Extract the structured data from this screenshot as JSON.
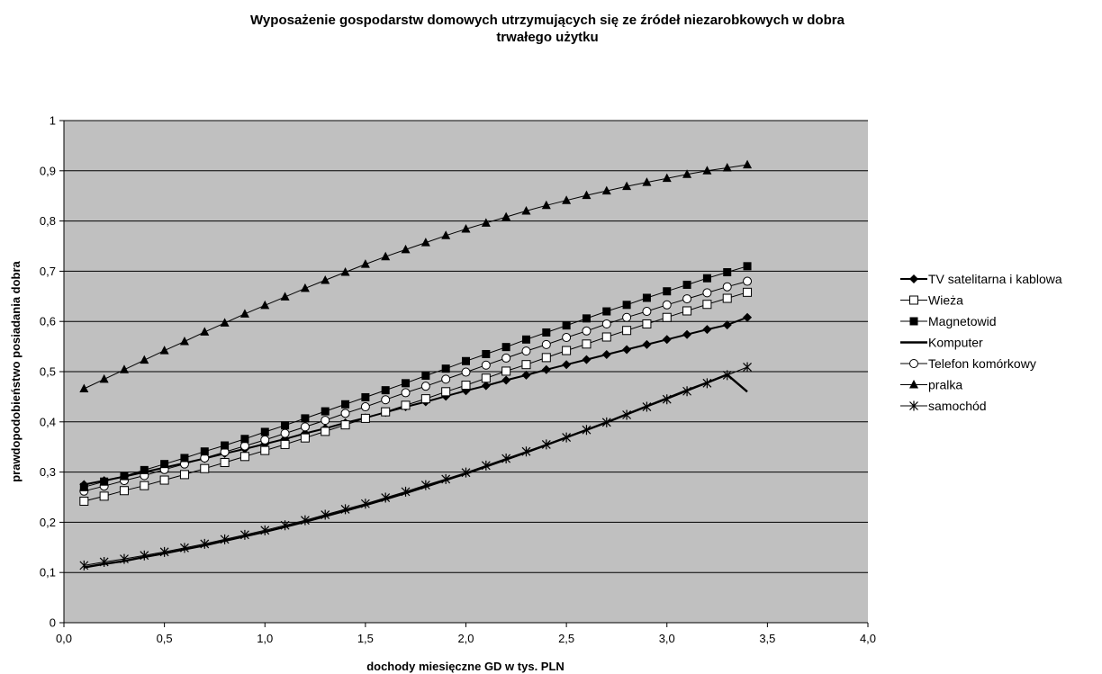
{
  "chart_data": {
    "type": "line",
    "title_line1": "Wyposażenie gospodarstw domowych utrzymujących się ze źródeł niezarobkowych w dobra",
    "title_line2": "trwałego użytku",
    "xlabel": "dochody miesięczne GD w tys. PLN",
    "ylabel": "prawdopodobieństwo posiadania dobra",
    "xlim": [
      0,
      4
    ],
    "ylim": [
      0,
      1
    ],
    "x_ticks": [
      "0,0",
      "0,5",
      "1,0",
      "1,5",
      "2,0",
      "2,5",
      "3,0",
      "3,5",
      "4,0"
    ],
    "y_ticks": [
      "0",
      "0,1",
      "0,2",
      "0,3",
      "0,4",
      "0,5",
      "0,6",
      "0,7",
      "0,8",
      "0,9",
      "1"
    ],
    "grid": "horizontal",
    "legend_position": "right",
    "plot_background": "#c0c0c0",
    "x": [
      0.1,
      0.2,
      0.3,
      0.4,
      0.5,
      0.6,
      0.7,
      0.8,
      0.9,
      1.0,
      1.1,
      1.2,
      1.3,
      1.4,
      1.5,
      1.6,
      1.7,
      1.8,
      1.9,
      2.0,
      2.1,
      2.2,
      2.3,
      2.4,
      2.5,
      2.6,
      2.7,
      2.8,
      2.9,
      3.0,
      3.1,
      3.2,
      3.3,
      3.4
    ],
    "series": [
      {
        "name": "TV satelitarna i kablowa",
        "marker": "diamond",
        "values": [
          0.275,
          0.283,
          0.291,
          0.3,
          0.309,
          0.318,
          0.327,
          0.337,
          0.346,
          0.356,
          0.366,
          0.377,
          0.387,
          0.398,
          0.408,
          0.419,
          0.43,
          0.44,
          0.451,
          0.462,
          0.472,
          0.483,
          0.493,
          0.504,
          0.514,
          0.524,
          0.534,
          0.544,
          0.554,
          0.564,
          0.574,
          0.584,
          0.593,
          0.608
        ]
      },
      {
        "name": "Wieża",
        "marker": "square-open",
        "values": [
          0.242,
          0.252,
          0.263,
          0.273,
          0.284,
          0.295,
          0.307,
          0.319,
          0.331,
          0.343,
          0.355,
          0.368,
          0.381,
          0.394,
          0.407,
          0.42,
          0.433,
          0.446,
          0.46,
          0.473,
          0.487,
          0.501,
          0.514,
          0.528,
          0.542,
          0.555,
          0.569,
          0.582,
          0.595,
          0.608,
          0.621,
          0.634,
          0.646,
          0.658
        ]
      },
      {
        "name": "Magnetowid",
        "marker": "square",
        "values": [
          0.27,
          0.281,
          0.292,
          0.304,
          0.316,
          0.328,
          0.341,
          0.353,
          0.366,
          0.38,
          0.393,
          0.407,
          0.421,
          0.435,
          0.449,
          0.463,
          0.477,
          0.492,
          0.506,
          0.521,
          0.535,
          0.549,
          0.564,
          0.578,
          0.592,
          0.606,
          0.62,
          0.633,
          0.647,
          0.66,
          0.673,
          0.686,
          0.698,
          0.71
        ]
      },
      {
        "name": "Komputer",
        "marker": "none",
        "values": [
          0.11,
          0.117,
          0.123,
          0.131,
          0.138,
          0.146,
          0.154,
          0.163,
          0.172,
          0.181,
          0.191,
          0.201,
          0.212,
          0.223,
          0.234,
          0.246,
          0.258,
          0.271,
          0.284,
          0.297,
          0.311,
          0.325,
          0.339,
          0.354,
          0.369,
          0.384,
          0.399,
          0.415,
          0.431,
          0.447,
          0.463,
          0.478,
          0.494,
          0.46
        ]
      },
      {
        "name": "Telefon komórkowy",
        "marker": "circle-open",
        "values": [
          0.262,
          0.272,
          0.283,
          0.293,
          0.305,
          0.316,
          0.328,
          0.34,
          0.352,
          0.364,
          0.377,
          0.39,
          0.403,
          0.417,
          0.43,
          0.444,
          0.458,
          0.471,
          0.485,
          0.499,
          0.513,
          0.527,
          0.541,
          0.554,
          0.568,
          0.581,
          0.595,
          0.608,
          0.62,
          0.633,
          0.645,
          0.657,
          0.669,
          0.68
        ]
      },
      {
        "name": "pralka",
        "marker": "triangle",
        "values": [
          0.466,
          0.485,
          0.504,
          0.523,
          0.542,
          0.56,
          0.579,
          0.597,
          0.615,
          0.632,
          0.649,
          0.666,
          0.682,
          0.698,
          0.714,
          0.729,
          0.743,
          0.757,
          0.771,
          0.784,
          0.796,
          0.808,
          0.82,
          0.831,
          0.841,
          0.851,
          0.86,
          0.869,
          0.877,
          0.885,
          0.893,
          0.9,
          0.906,
          0.912
        ]
      },
      {
        "name": "samochód",
        "marker": "star",
        "values": [
          0.114,
          0.121,
          0.127,
          0.134,
          0.141,
          0.149,
          0.157,
          0.166,
          0.175,
          0.184,
          0.194,
          0.204,
          0.215,
          0.226,
          0.237,
          0.249,
          0.261,
          0.274,
          0.286,
          0.299,
          0.313,
          0.327,
          0.341,
          0.355,
          0.369,
          0.384,
          0.399,
          0.414,
          0.43,
          0.445,
          0.461,
          0.477,
          0.493,
          0.509
        ]
      }
    ]
  }
}
